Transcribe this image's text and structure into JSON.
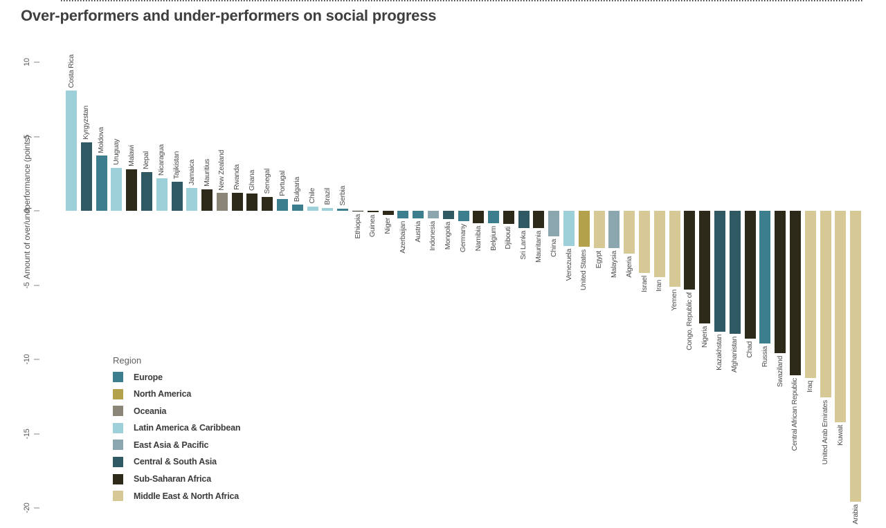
{
  "title": "Over-performers and under-performers on social progress",
  "y_axis_label": "Amount of over/undperformance (points)",
  "legend": {
    "title": "Region",
    "items": [
      {
        "label": "Europe",
        "color": "#3d7e8e"
      },
      {
        "label": "North America",
        "color": "#b3a14c"
      },
      {
        "label": "Oceania",
        "color": "#8b8578"
      },
      {
        "label": "Latin America & Caribbean",
        "color": "#9ed0da"
      },
      {
        "label": "East Asia & Pacific",
        "color": "#8ba6ae"
      },
      {
        "label": "Central & South Asia",
        "color": "#2f5a64"
      },
      {
        "label": "Sub-Saharan Africa",
        "color": "#2e2a19"
      },
      {
        "label": "Middle East & North Africa",
        "color": "#d6c995"
      }
    ]
  },
  "chart_data": {
    "type": "bar",
    "title": "Over-performers and under-performers on social progress",
    "xlabel": "",
    "ylabel": "Amount of over/undperformance (points)",
    "yticks": [
      10,
      5,
      0,
      -5,
      -10,
      -15,
      -20
    ],
    "ylim": [
      -20.5,
      10.5
    ],
    "grid": false,
    "legend_position": "bottom-left",
    "zero_line": "dotted",
    "bars": [
      {
        "country": "Costa Rica",
        "region": "Latin America & Caribbean",
        "value": 8.1
      },
      {
        "country": "Kyrgyzstan",
        "region": "Central & South Asia",
        "value": 4.6
      },
      {
        "country": "Moldova",
        "region": "Europe",
        "value": 3.7
      },
      {
        "country": "Uruguay",
        "region": "Latin America & Caribbean",
        "value": 2.9
      },
      {
        "country": "Malawi",
        "region": "Sub-Saharan Africa",
        "value": 2.8
      },
      {
        "country": "Nepal",
        "region": "Central & South Asia",
        "value": 2.6
      },
      {
        "country": "Nicaragua",
        "region": "Latin America & Caribbean",
        "value": 2.2
      },
      {
        "country": "Tajikistan",
        "region": "Central & South Asia",
        "value": 1.95
      },
      {
        "country": "Jamaica",
        "region": "Latin America & Caribbean",
        "value": 1.55
      },
      {
        "country": "Mauritius",
        "region": "Sub-Saharan Africa",
        "value": 1.45
      },
      {
        "country": "New Zealand",
        "region": "Oceania",
        "value": 1.2
      },
      {
        "country": "Rwanda",
        "region": "Sub-Saharan Africa",
        "value": 1.2
      },
      {
        "country": "Ghana",
        "region": "Sub-Saharan Africa",
        "value": 1.15
      },
      {
        "country": "Senegal",
        "region": "Sub-Saharan Africa",
        "value": 0.95
      },
      {
        "country": "Portugal",
        "region": "Europe",
        "value": 0.8
      },
      {
        "country": "Bulgaria",
        "region": "Europe",
        "value": 0.4
      },
      {
        "country": "Chile",
        "region": "Latin America & Caribbean",
        "value": 0.3
      },
      {
        "country": "Brazil",
        "region": "Latin America & Caribbean",
        "value": 0.2
      },
      {
        "country": "Serbia",
        "region": "Europe",
        "value": 0.15
      },
      {
        "country": "Ethiopia",
        "region": "Sub-Saharan Africa",
        "value": -0.05
      },
      {
        "country": "Guinea",
        "region": "Sub-Saharan Africa",
        "value": -0.1
      },
      {
        "country": "Niger",
        "region": "Sub-Saharan Africa",
        "value": -0.28
      },
      {
        "country": "Azerbaijan",
        "region": "Europe",
        "value": -0.5
      },
      {
        "country": "Austria",
        "region": "Europe",
        "value": -0.51
      },
      {
        "country": "Indonesia",
        "region": "East Asia & Pacific",
        "value": -0.53
      },
      {
        "country": "Mongolia",
        "region": "Central & South Asia",
        "value": -0.56
      },
      {
        "country": "Germany",
        "region": "Europe",
        "value": -0.68
      },
      {
        "country": "Namibia",
        "region": "Sub-Saharan Africa",
        "value": -0.82
      },
      {
        "country": "Belgium",
        "region": "Europe",
        "value": -0.85
      },
      {
        "country": "Djibouti",
        "region": "Sub-Saharan Africa",
        "value": -0.9
      },
      {
        "country": "Sri Lanka",
        "region": "Central & South Asia",
        "value": -1.15
      },
      {
        "country": "Mauritania",
        "region": "Sub-Saharan Africa",
        "value": -1.15
      },
      {
        "country": "China",
        "region": "East Asia & Pacific",
        "value": -1.7
      },
      {
        "country": "Venezuela",
        "region": "Latin America & Caribbean",
        "value": -2.35
      },
      {
        "country": "United States",
        "region": "North America",
        "value": -2.4
      },
      {
        "country": "Egypt",
        "region": "Middle East & North Africa",
        "value": -2.5
      },
      {
        "country": "Malaysia",
        "region": "East Asia & Pacific",
        "value": -2.5
      },
      {
        "country": "Algeria",
        "region": "Middle East & North Africa",
        "value": -2.9
      },
      {
        "country": "Israel",
        "region": "Middle East & North Africa",
        "value": -4.2
      },
      {
        "country": "Iran",
        "region": "Middle East & North Africa",
        "value": -4.45
      },
      {
        "country": "Yemen",
        "region": "Middle East & North Africa",
        "value": -5.1
      },
      {
        "country": "Congo, Republic of",
        "region": "Sub-Saharan Africa",
        "value": -5.3
      },
      {
        "country": "Nigeria",
        "region": "Sub-Saharan Africa",
        "value": -7.6
      },
      {
        "country": "Kazakhstan",
        "region": "Central & South Asia",
        "value": -8.15
      },
      {
        "country": "Afghanistan",
        "region": "Central & South Asia",
        "value": -8.3
      },
      {
        "country": "Chad",
        "region": "Sub-Saharan Africa",
        "value": -8.6
      },
      {
        "country": "Russia",
        "region": "Europe",
        "value": -8.95
      },
      {
        "country": "Swaziland",
        "region": "Sub-Saharan Africa",
        "value": -9.6
      },
      {
        "country": "Central African Republic",
        "region": "Sub-Saharan Africa",
        "value": -11.05
      },
      {
        "country": "Iraq",
        "region": "Middle East & North Africa",
        "value": -11.25
      },
      {
        "country": "United Arab Emirates",
        "region": "Middle East & North Africa",
        "value": -12.55
      },
      {
        "country": "Kuwait",
        "region": "Middle East & North Africa",
        "value": -14.25
      },
      {
        "country": "Arabia",
        "region": "Middle East & North Africa",
        "value": -19.6
      }
    ]
  }
}
